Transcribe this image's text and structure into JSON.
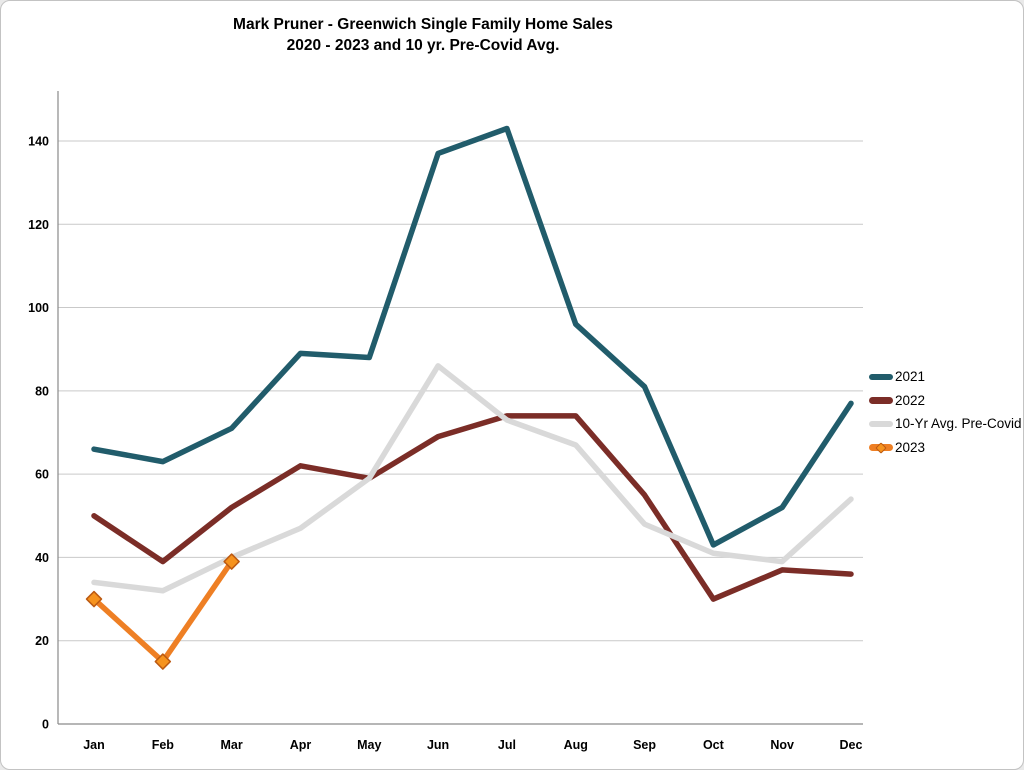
{
  "frame": {
    "background": "#FFFFFF",
    "border_color": "#C3C3C3"
  },
  "chart_data": {
    "type": "line",
    "title": "Mark Pruner - Greenwich Single Family Home Sales",
    "subtitle": "2020 - 2023 and 10 yr. Pre-Covid Avg.",
    "categories": [
      "Jan",
      "Feb",
      "Mar",
      "Apr",
      "May",
      "Jun",
      "Jul",
      "Aug",
      "Sep",
      "Oct",
      "Nov",
      "Dec"
    ],
    "y_ticks": [
      0,
      20,
      40,
      60,
      80,
      100,
      120,
      140
    ],
    "ylim": [
      0,
      152
    ],
    "grid": true,
    "grid_color": "#C9C9C9",
    "axis_color": "#8A8A8A",
    "text_color": "#000000",
    "legend_position": "right",
    "series": [
      {
        "name": "2021",
        "color": "#215C6B",
        "marker": "none",
        "values": [
          66,
          63,
          71,
          89,
          88,
          137,
          143,
          96,
          81,
          43,
          52,
          77
        ]
      },
      {
        "name": "2022",
        "color": "#7B2D27",
        "marker": "none",
        "values": [
          50,
          39,
          52,
          62,
          59,
          69,
          74,
          74,
          55,
          30,
          37,
          36
        ]
      },
      {
        "name": "10-Yr Avg. Pre-Covid",
        "color": "#D9D9D9",
        "marker": "none",
        "values": [
          34,
          32,
          40,
          47,
          59,
          86,
          73,
          67,
          48,
          41,
          39,
          54
        ]
      },
      {
        "name": "2023",
        "color": "#EE7F24",
        "marker": "diamond",
        "marker_fill": "#F6931E",
        "marker_border": "#BC5A12",
        "values": [
          30,
          15,
          39
        ]
      }
    ]
  }
}
